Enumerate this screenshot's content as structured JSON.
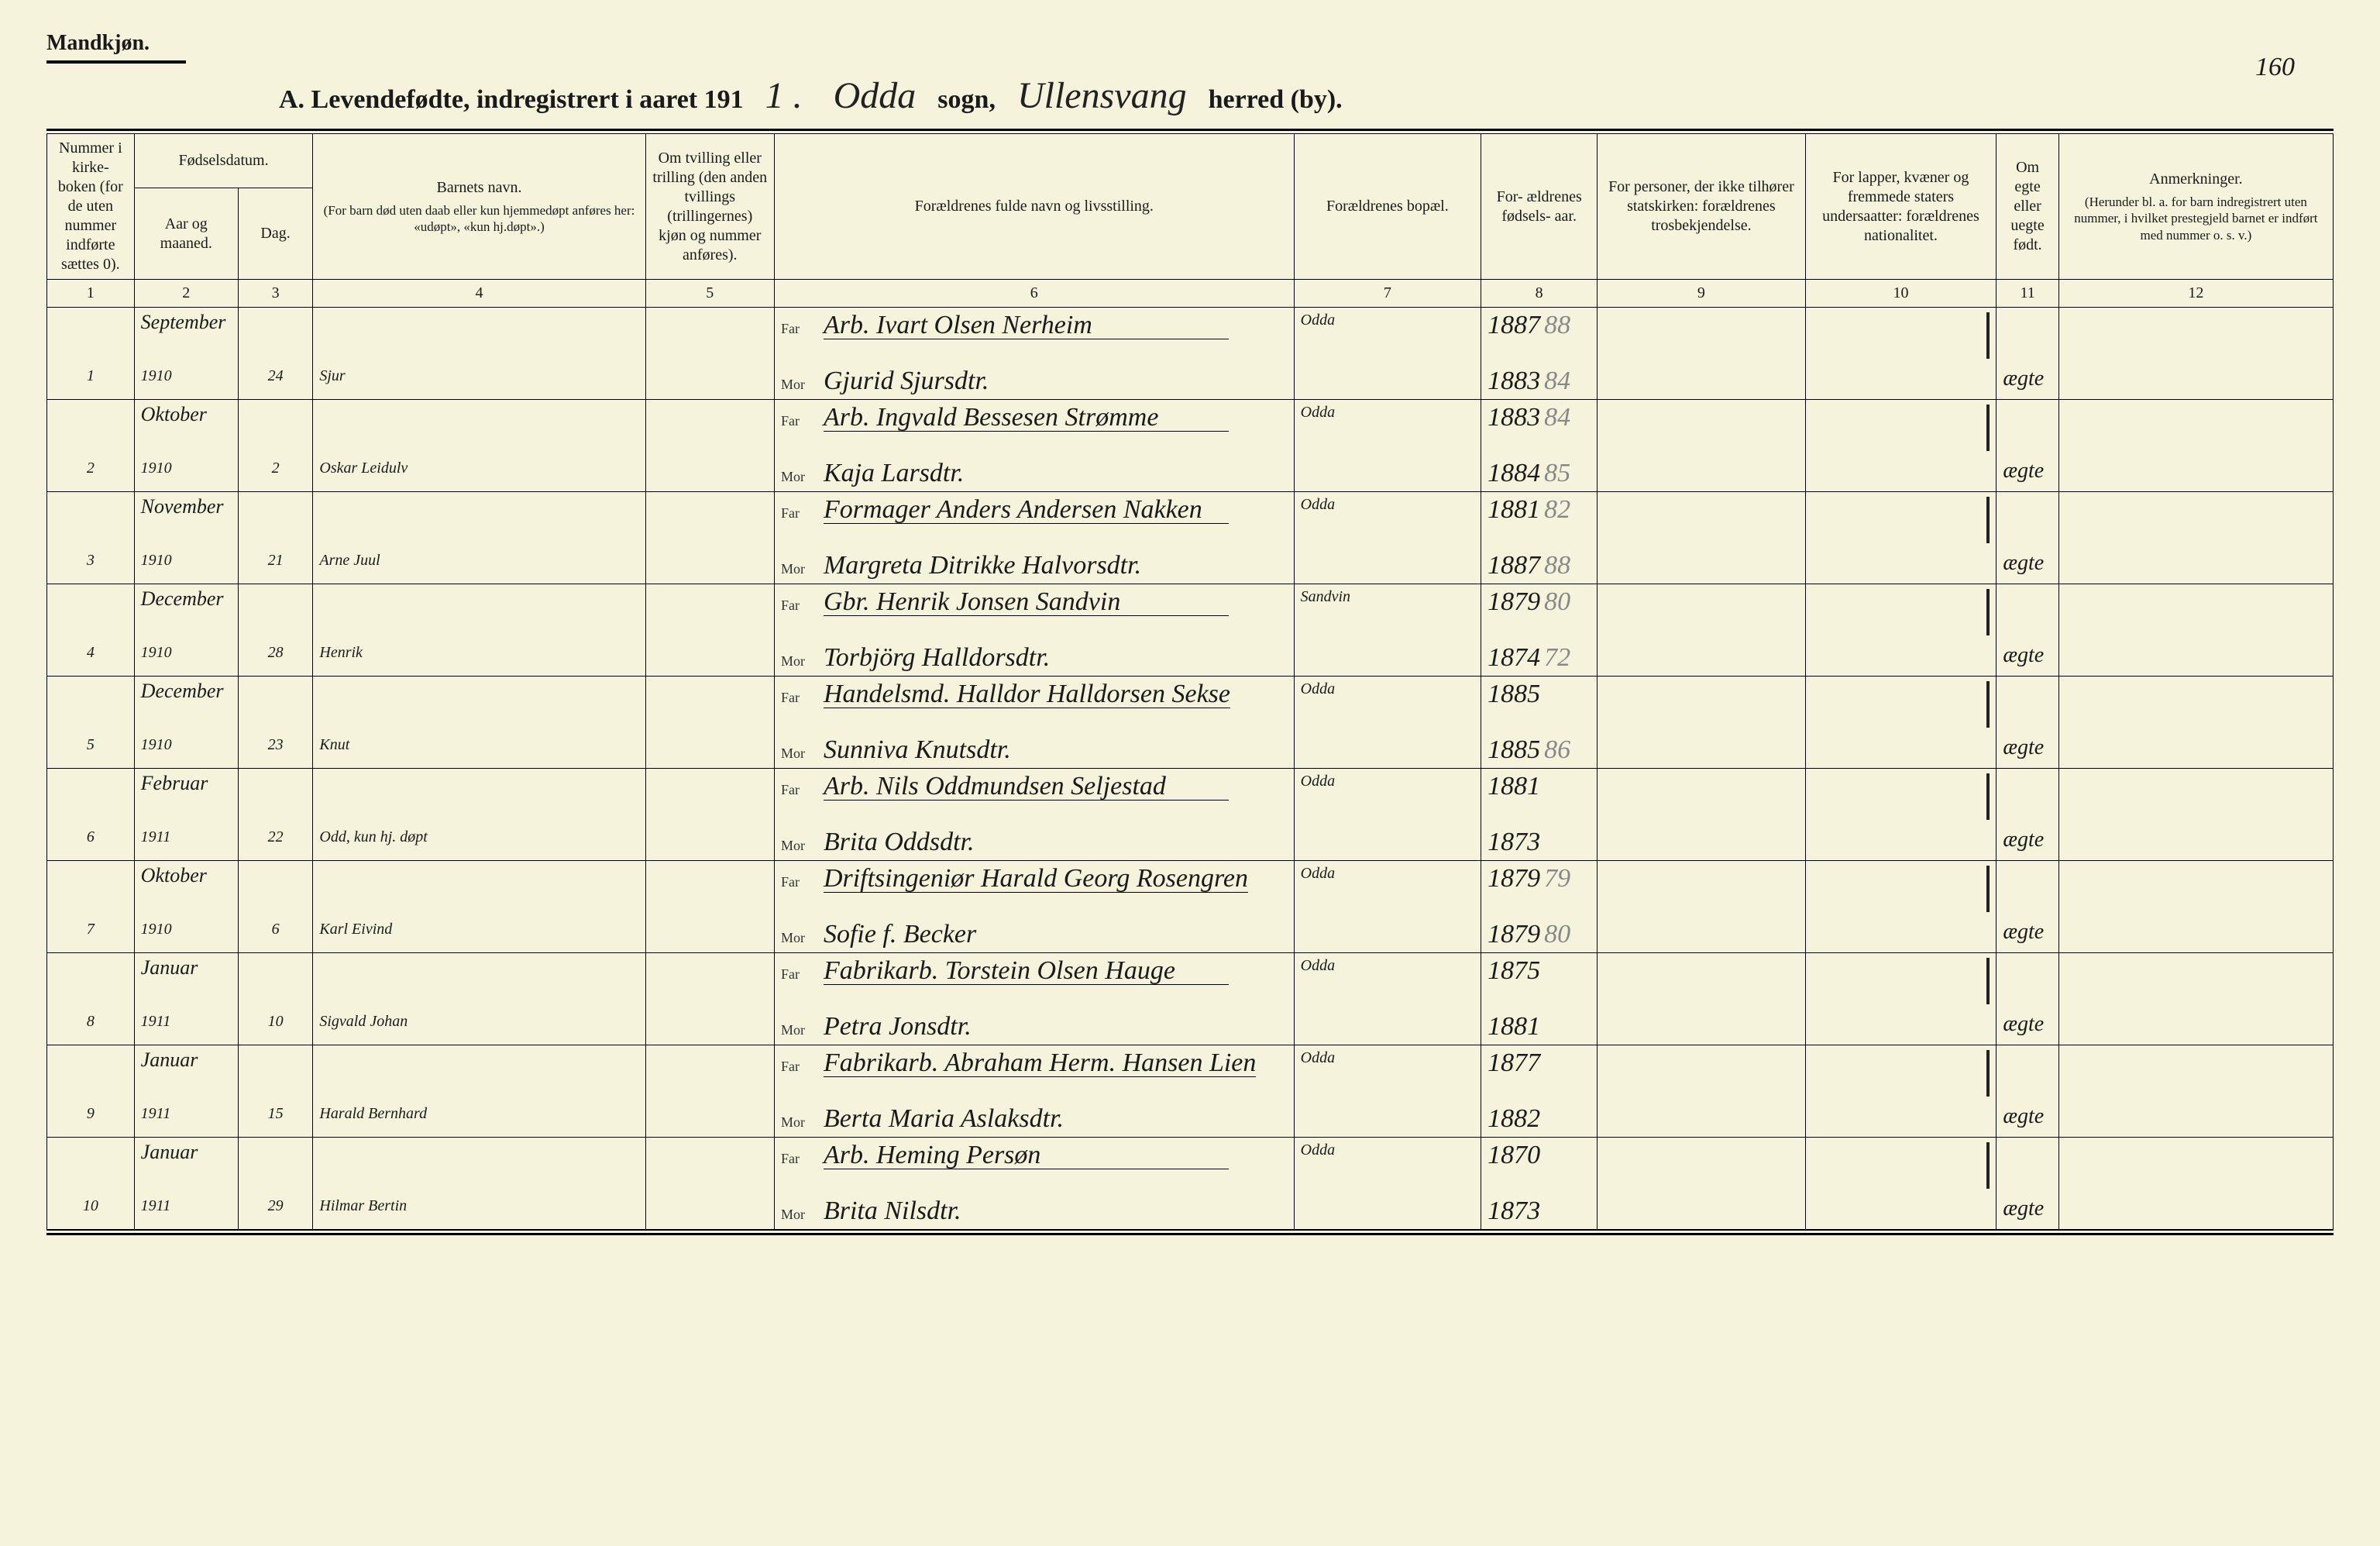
{
  "page_number_handwritten": "160",
  "gender_label": "Mandkjøn.",
  "title": {
    "prefix": "A.  Levendefødte, indregistrert i aaret 191",
    "year_suffix_hand": "1 .",
    "parish_hand": "Odda",
    "sogn_label": "sogn,",
    "district_hand": "Ullensvang",
    "herred_label": "herred (by)."
  },
  "columns": {
    "widths_pct": [
      4.2,
      5.0,
      3.6,
      16.0,
      6.2,
      25.0,
      9.0,
      5.6,
      10.0,
      9.2,
      3.0,
      13.2
    ],
    "headers": {
      "c1": "Nummer i kirke- boken (for de uten nummer indførte sættes 0).",
      "c23_group": "Fødselsdatum.",
      "c2": "Aar og maaned.",
      "c3": "Dag.",
      "c4": "Barnets navn.",
      "c4_note": "(For barn død uten daab eller kun hjemmedøpt anføres her: «udøpt», «kun hj.døpt».)",
      "c5": "Om tvilling eller trilling (den anden tvillings (trillingernes) kjøn og nummer anføres).",
      "c6": "Forældrenes fulde navn og livsstilling.",
      "c7": "Forældrenes bopæl.",
      "c8": "For- ældrenes fødsels- aar.",
      "c9": "For personer, der ikke tilhører statskirken: forældrenes trosbekjendelse.",
      "c10": "For lapper, kvæner og fremmede staters undersaatter: forældrenes nationalitet.",
      "c11": "Om egte eller uegte født.",
      "c12": "Anmerkninger.",
      "c12_note": "(Herunder bl. a. for barn indregistrert uten nummer, i hvilket prestegjeld barnet er indført med nummer o. s. v.)"
    },
    "col_numbers": [
      "1",
      "2",
      "3",
      "4",
      "5",
      "6",
      "7",
      "8",
      "9",
      "10",
      "11",
      "12"
    ],
    "far_label": "Far",
    "mor_label": "Mor"
  },
  "entries": [
    {
      "num": "1",
      "month": "September",
      "year": "1910",
      "day": "24",
      "child": "Sjur",
      "far": "Arb. Ivart Olsen Nerheim",
      "mor": "Gjurid Sjursdtr.",
      "bopael": "Odda",
      "far_year": "1887",
      "far_year_faint": "88",
      "mor_year": "1883",
      "mor_year_faint": "84",
      "legit": "ægte"
    },
    {
      "num": "2",
      "month": "Oktober",
      "year": "1910",
      "day": "2",
      "child": "Oskar Leidulv",
      "far": "Arb. Ingvald Bessesen Strømme",
      "mor": "Kaja Larsdtr.",
      "bopael": "Odda",
      "far_year": "1883",
      "far_year_faint": "84",
      "mor_year": "1884",
      "mor_year_faint": "85",
      "legit": "ægte"
    },
    {
      "num": "3",
      "month": "November",
      "year": "1910",
      "day": "21",
      "child": "Arne Juul",
      "far": "Formager Anders Andersen Nakken",
      "mor": "Margreta Ditrikke Halvorsdtr.",
      "bopael": "Odda",
      "far_year": "1881",
      "far_year_faint": "82",
      "mor_year": "1887",
      "mor_year_faint": "88",
      "legit": "ægte"
    },
    {
      "num": "4",
      "month": "December",
      "year": "1910",
      "day": "28",
      "child": "Henrik",
      "far": "Gbr. Henrik Jonsen Sandvin",
      "mor": "Torbjörg Halldorsdtr.",
      "bopael": "Sandvin",
      "far_year": "1879",
      "far_year_faint": "80",
      "mor_year": "1874",
      "mor_year_faint": "72",
      "legit": "ægte"
    },
    {
      "num": "5",
      "month": "December",
      "year": "1910",
      "day": "23",
      "child": "Knut",
      "far": "Handelsmd. Halldor Halldorsen Sekse",
      "mor": "Sunniva Knutsdtr.",
      "bopael": "Odda",
      "far_year": "1885",
      "far_year_faint": "",
      "mor_year": "1885",
      "mor_year_faint": "86",
      "legit": "ægte"
    },
    {
      "num": "6",
      "month": "Februar",
      "year": "1911",
      "day": "22",
      "child": "Odd, kun hj. døpt",
      "far": "Arb. Nils Oddmundsen Seljestad",
      "mor": "Brita Oddsdtr.",
      "bopael": "Odda",
      "far_year": "1881",
      "far_year_faint": "",
      "mor_year": "1873",
      "mor_year_faint": "",
      "legit": "ægte"
    },
    {
      "num": "7",
      "month": "Oktober",
      "year": "1910",
      "day": "6",
      "child": "Karl Eivind",
      "far": "Driftsingeniør Harald Georg Rosengren",
      "mor": "Sofie f. Becker",
      "bopael": "Odda",
      "far_year": "1879",
      "far_year_faint": "79",
      "mor_year": "1879",
      "mor_year_faint": "80",
      "legit": "ægte"
    },
    {
      "num": "8",
      "month": "Januar",
      "year": "1911",
      "day": "10",
      "child": "Sigvald Johan",
      "far": "Fabrikarb. Torstein Olsen Hauge",
      "mor": "Petra Jonsdtr.",
      "bopael": "Odda",
      "far_year": "1875",
      "far_year_faint": "",
      "mor_year": "1881",
      "mor_year_faint": "",
      "legit": "ægte"
    },
    {
      "num": "9",
      "month": "Januar",
      "year": "1911",
      "day": "15",
      "child": "Harald Bernhard",
      "far": "Fabrikarb. Abraham Herm. Hansen Lien",
      "mor": "Berta Maria Aslaksdtr.",
      "bopael": "Odda",
      "far_year": "1877",
      "far_year_faint": "",
      "mor_year": "1882",
      "mor_year_faint": "",
      "legit": "ægte"
    },
    {
      "num": "10",
      "month": "Januar",
      "year": "1911",
      "day": "29",
      "child": "Hilmar Bertin",
      "far": "Arb. Heming Persøn",
      "mor": "Brita Nilsdtr.",
      "bopael": "Odda",
      "far_year": "1870",
      "far_year_faint": "",
      "mor_year": "1873",
      "mor_year_faint": "",
      "legit": "ægte"
    }
  ],
  "style": {
    "bg": "#f5f3db",
    "ink": "#1a1a1a",
    "faint": "#888888",
    "rule": "#000000",
    "hand_font": "Brush Script MT",
    "print_font": "Times New Roman",
    "header_fontsize_pt": 15,
    "body_hand_fontsize_pt": 26,
    "title_fontsize_pt": 26
  }
}
